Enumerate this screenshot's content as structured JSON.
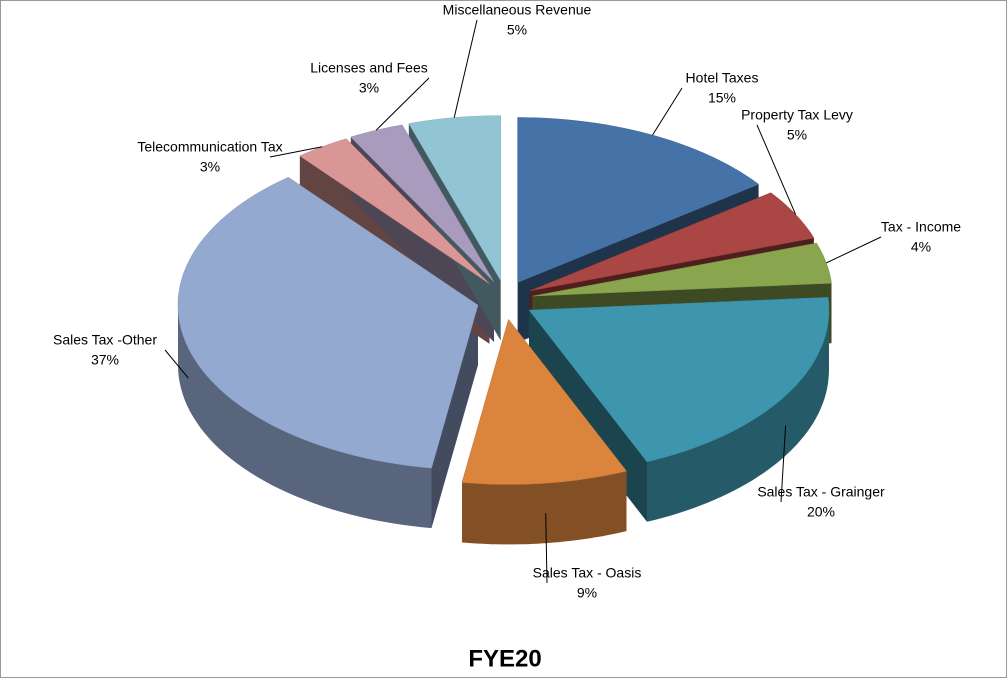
{
  "chart_data": {
    "type": "pie",
    "title": "FYE20",
    "categories": [
      "Hotel Taxes",
      "Property Tax Levy",
      "Tax - Income",
      "Sales Tax - Grainger",
      "Sales Tax - Oasis",
      "Sales Tax -Other",
      "Telecommunication Tax",
      "Licenses and Fees",
      "Miscellaneous Revenue"
    ],
    "values": [
      15,
      5,
      4,
      20,
      9,
      37,
      3,
      3,
      5
    ],
    "value_labels": [
      "15%",
      "5%",
      "4%",
      "20%",
      "9%",
      "37%",
      "3%",
      "3%",
      "5%"
    ],
    "colors": [
      "#4572a7",
      "#aa4643",
      "#89a54e",
      "#3d96ae",
      "#db843d",
      "#93a9d0",
      "#d99694",
      "#a99bbd",
      "#92c5d4"
    ]
  }
}
